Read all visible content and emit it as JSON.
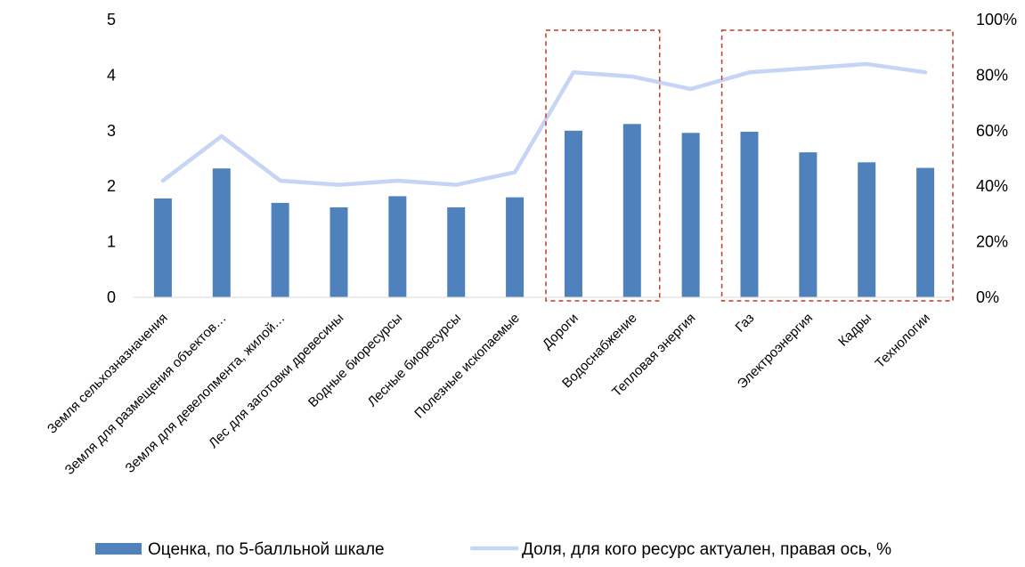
{
  "chart_data": {
    "type": "bar",
    "categories": [
      "Земля сельхозназначения",
      "Земля для размещения объектов…",
      "Земля для девелопмента, жилой…",
      "Лес для заготовки древесины",
      "Водные биоресурсы",
      "Лесные биоресурсы",
      "Полезные ископаемые",
      "Дороги",
      "Водоснабжение",
      "Тепловая энергия",
      "Газ",
      "Электроэнергия",
      "Кадры",
      "Технологии"
    ],
    "series": [
      {
        "name": "Оценка, по 5-балльной шкале",
        "type": "bar",
        "axis": "left",
        "color": "#4f81bd",
        "values": [
          1.78,
          2.32,
          1.7,
          1.62,
          1.82,
          1.62,
          1.8,
          3.0,
          3.12,
          2.96,
          2.98,
          2.61,
          2.43,
          2.33
        ]
      },
      {
        "name": "Доля, для кого ресурс актуален, правая ось, %",
        "type": "line",
        "axis": "right",
        "color": "#c6d4f5",
        "values": [
          42,
          58,
          42,
          40.5,
          42,
          40.5,
          45,
          81,
          79.5,
          75,
          81,
          82.5,
          84,
          81
        ]
      }
    ],
    "ylim": [
      0,
      5
    ],
    "yticks": [
      "0",
      "1",
      "2",
      "3",
      "4",
      "5"
    ],
    "y2lim": [
      0,
      100
    ],
    "y2ticks": [
      "0%",
      "20%",
      "40%",
      "60%",
      "80%",
      "100%"
    ],
    "highlight_groups": [
      [
        7,
        8
      ],
      [
        10,
        13
      ]
    ],
    "highlight_color": "#c0392b",
    "legend_position": "bottom",
    "grid": false
  }
}
